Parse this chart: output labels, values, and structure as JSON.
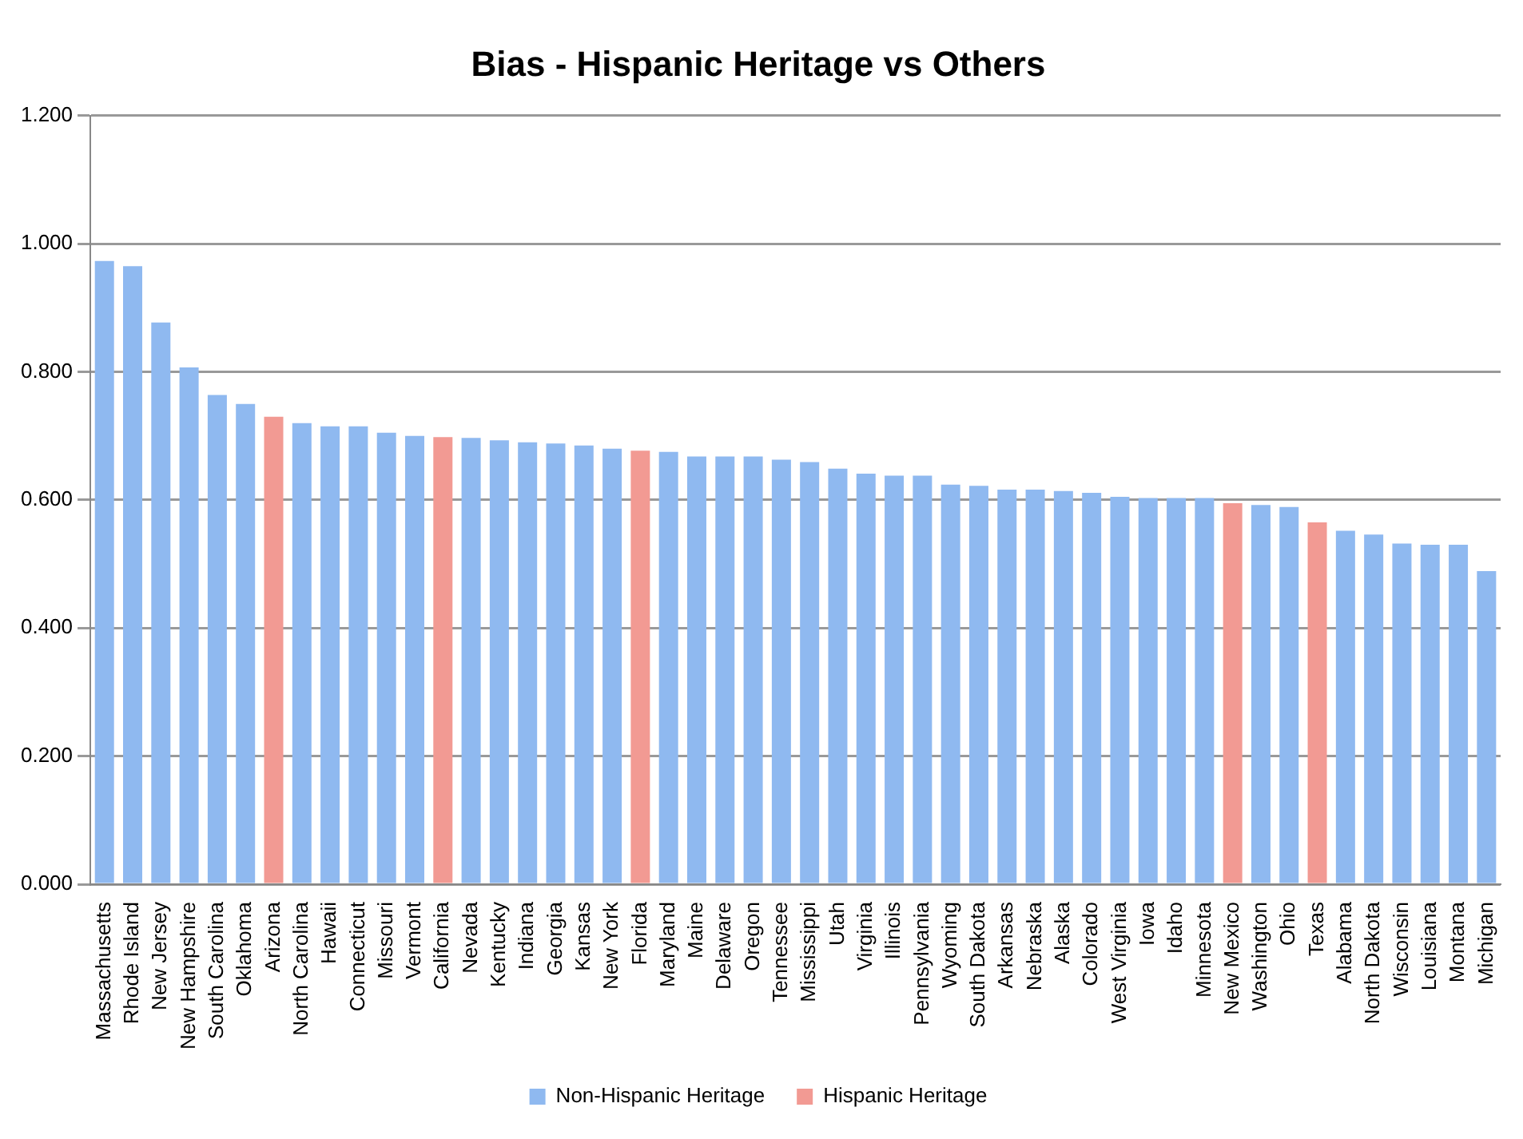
{
  "chart_data": {
    "type": "bar",
    "title": "Bias - Hispanic Heritage vs Others",
    "categories": [
      "Massachusetts",
      "Rhode Island",
      "New Jersey",
      "New Hampshire",
      "South Carolina",
      "Oklahoma",
      "Arizona",
      "North Carolina",
      "Hawaii",
      "Connecticut",
      "Missouri",
      "Vermont",
      "California",
      "Nevada",
      "Kentucky",
      "Indiana",
      "Georgia",
      "Kansas",
      "New York",
      "Florida",
      "Maryland",
      "Maine",
      "Delaware",
      "Oregon",
      "Tennessee",
      "Mississippi",
      "Utah",
      "Virginia",
      "Illinois",
      "Pennsylvania",
      "Wyoming",
      "South Dakota",
      "Arkansas",
      "Nebraska",
      "Alaska",
      "Colorado",
      "West Virginia",
      "Iowa",
      "Idaho",
      "Minnesota",
      "New Mexico",
      "Washington",
      "Ohio",
      "Texas",
      "Alabama",
      "North Dakota",
      "Wisconsin",
      "Louisiana",
      "Montana",
      "Michigan"
    ],
    "series": [
      {
        "name": "Non-Hispanic Heritage",
        "color": "#8fb9f0",
        "values": [
          0.973,
          0.965,
          0.877,
          0.807,
          0.764,
          0.75,
          null,
          0.72,
          0.715,
          0.715,
          0.705,
          0.7,
          null,
          0.697,
          0.693,
          0.69,
          0.688,
          0.685,
          0.68,
          null,
          0.675,
          0.668,
          0.668,
          0.668,
          0.663,
          0.659,
          0.649,
          0.641,
          0.638,
          0.638,
          0.624,
          0.622,
          0.616,
          0.616,
          0.614,
          0.611,
          0.605,
          0.603,
          0.603,
          0.603,
          null,
          0.592,
          0.589,
          null,
          0.552,
          0.546,
          0.532,
          0.53,
          0.53,
          0.489
        ]
      },
      {
        "name": "Hispanic Heritage",
        "color": "#f29a93",
        "values": [
          null,
          null,
          null,
          null,
          null,
          null,
          0.73,
          null,
          null,
          null,
          null,
          null,
          0.698,
          null,
          null,
          null,
          null,
          null,
          null,
          0.677,
          null,
          null,
          null,
          null,
          null,
          null,
          null,
          null,
          null,
          null,
          null,
          null,
          null,
          null,
          null,
          null,
          null,
          null,
          null,
          null,
          0.595,
          null,
          null,
          0.565,
          null,
          null,
          null,
          null,
          null,
          null
        ]
      }
    ],
    "ylim": [
      0,
      1.2
    ],
    "yticks": [
      {
        "value": 0,
        "label": "0.000"
      },
      {
        "value": 0.2,
        "label": "0.200"
      },
      {
        "value": 0.4,
        "label": "0.400"
      },
      {
        "value": 0.6,
        "label": "0.600"
      },
      {
        "value": 0.8,
        "label": "0.800"
      },
      {
        "value": 1,
        "label": "1.000"
      },
      {
        "value": 1.2,
        "label": "1.200"
      }
    ],
    "grid": "y",
    "legend": "bottom"
  }
}
